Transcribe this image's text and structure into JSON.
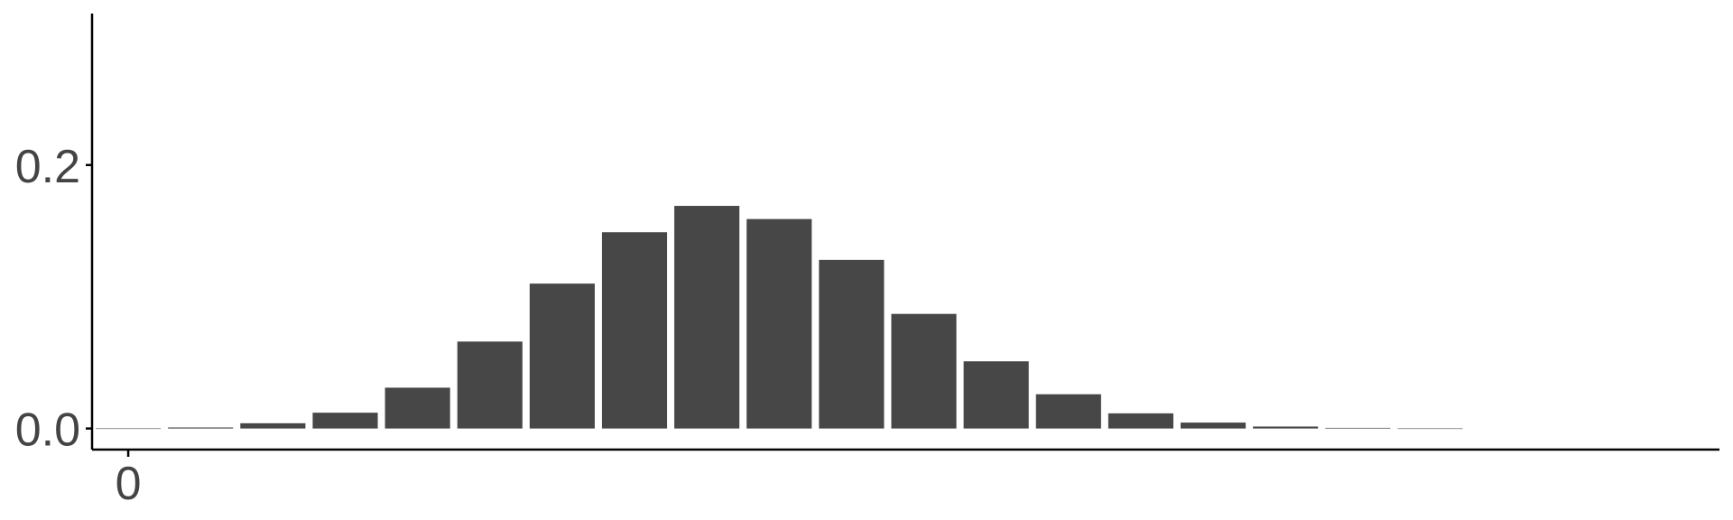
{
  "chart_data": {
    "type": "bar",
    "x": [
      0,
      1,
      2,
      3,
      4,
      5,
      6,
      7,
      8,
      9,
      10,
      11,
      12,
      13,
      14,
      15,
      16,
      17,
      18
    ],
    "values": [
      0.0001,
      0.0008,
      0.004,
      0.012,
      0.031,
      0.066,
      0.11,
      0.149,
      0.169,
      0.159,
      0.128,
      0.087,
      0.051,
      0.026,
      0.0115,
      0.0045,
      0.0015,
      0.0005,
      0.0001
    ],
    "xlim": [
      -0.5,
      22
    ],
    "ylim": [
      -0.016,
      0.315
    ],
    "x_ticks": [
      0
    ],
    "x_tick_labels": [
      "0"
    ],
    "y_ticks": [
      0.0,
      0.2
    ],
    "y_tick_labels": [
      "0.0",
      "0.2"
    ],
    "bar_color": "#474747",
    "title": "",
    "xlabel": "",
    "ylabel": "",
    "grid": false
  }
}
